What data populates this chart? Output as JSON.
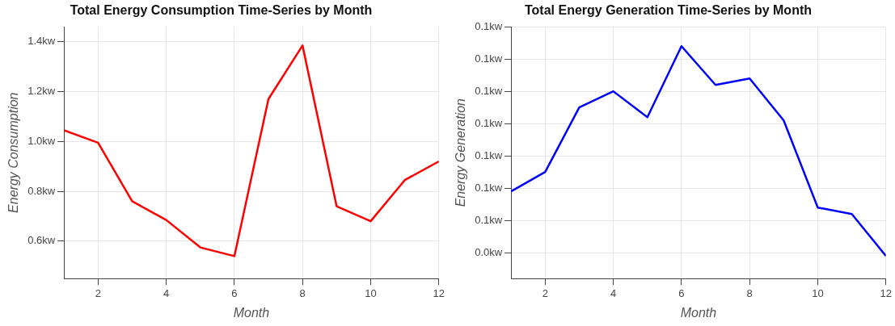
{
  "chart_data": [
    {
      "type": "line",
      "title": "Total Energy Consumption Time-Series by Month",
      "xlabel": "Month",
      "ylabel": "Energy Consumption",
      "x": [
        1,
        2,
        3,
        4,
        5,
        6,
        7,
        8,
        9,
        10,
        11,
        12
      ],
      "series": [
        {
          "color": "#ff0000",
          "values": [
            1.045,
            0.995,
            0.76,
            0.685,
            0.575,
            0.54,
            1.17,
            1.385,
            0.74,
            0.68,
            0.845,
            0.92
          ]
        }
      ],
      "xlim": [
        1,
        12
      ],
      "xticks": [
        2,
        4,
        6,
        8,
        10,
        12
      ],
      "ylim": [
        0.45,
        1.46
      ],
      "yticks": [
        {
          "value": 0.6,
          "label": "0.6kw"
        },
        {
          "value": 0.8,
          "label": "0.8kw"
        },
        {
          "value": 1.0,
          "label": "1.0kw"
        },
        {
          "value": 1.2,
          "label": "1.2kw"
        },
        {
          "value": 1.4,
          "label": "1.4kw"
        }
      ],
      "grid": true,
      "legend": false,
      "marker": "none",
      "line_style": "solid"
    },
    {
      "type": "line",
      "title": "Total Energy Generation Time-Series by Month",
      "xlabel": "Month",
      "ylabel": "Energy Generation",
      "x": [
        1,
        2,
        3,
        4,
        5,
        6,
        7,
        8,
        9,
        10,
        11,
        12
      ],
      "series": [
        {
          "color": "#0000ff",
          "values": [
            0.059,
            0.065,
            0.085,
            0.09,
            0.082,
            0.104,
            0.092,
            0.094,
            0.081,
            0.054,
            0.052,
            0.039
          ]
        }
      ],
      "xlim": [
        1,
        12
      ],
      "xticks": [
        2,
        4,
        6,
        8,
        10,
        12
      ],
      "ylim": [
        0.032,
        0.11
      ],
      "yticks": [
        {
          "value": 0.04,
          "label": "0.0kw"
        },
        {
          "value": 0.05,
          "label": "0.1kw"
        },
        {
          "value": 0.06,
          "label": "0.1kw"
        },
        {
          "value": 0.07,
          "label": "0.1kw"
        },
        {
          "value": 0.08,
          "label": "0.1kw"
        },
        {
          "value": 0.09,
          "label": "0.1kw"
        },
        {
          "value": 0.1,
          "label": "0.1kw"
        },
        {
          "value": 0.11,
          "label": "0.1kw"
        }
      ],
      "grid": true,
      "legend": false,
      "marker": "none",
      "line_style": "solid"
    }
  ]
}
